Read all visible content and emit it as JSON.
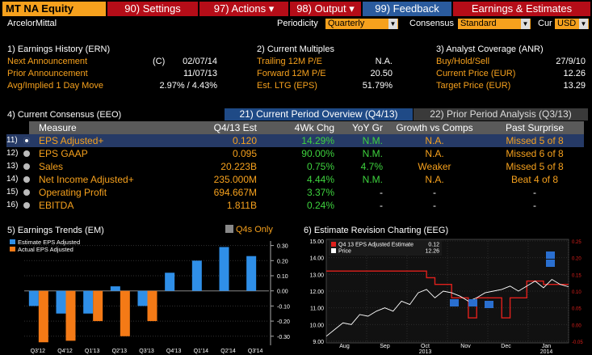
{
  "toolbar": {
    "security": "MT NA Equity",
    "settings": {
      "num": "90)",
      "label": "Settings"
    },
    "actions": {
      "num": "97)",
      "label": "Actions ▾"
    },
    "output": {
      "num": "98)",
      "label": "Output ▾"
    },
    "feedback": {
      "num": "99)",
      "label": "Feedback"
    },
    "title": "Earnings & Estimates"
  },
  "row2": {
    "company": "ArcelorMittal",
    "periodicity_label": "Periodicity",
    "periodicity_value": "Quarterly",
    "consensus_label": "Consensus",
    "consensus_value": "Standard",
    "cur_label": "Cur",
    "cur_value": "USD"
  },
  "earnings_history": {
    "title": "1) Earnings History (ERN)",
    "rows": [
      {
        "label": "Next Announcement",
        "flag": "(C)",
        "value": "02/07/14"
      },
      {
        "label": "Prior Announcement",
        "flag": "",
        "value": "11/07/13"
      },
      {
        "label": "Avg/Implied 1 Day Move",
        "flag": "",
        "value": "2.97% / 4.43%"
      }
    ]
  },
  "current_multiples": {
    "title": "2) Current Multiples",
    "rows": [
      {
        "label": "Trailing 12M P/E",
        "value": "N.A."
      },
      {
        "label": "Forward 12M P/E",
        "value": "20.50"
      },
      {
        "label": "Est. LTG (EPS)",
        "value": "51.79%"
      }
    ]
  },
  "analyst_coverage": {
    "title": "3) Analyst Coverage (ANR)",
    "rows": [
      {
        "label": "Buy/Hold/Sell",
        "value": "27/9/10"
      },
      {
        "label": "Current Price (EUR)",
        "value": "12.26"
      },
      {
        "label": "Target Price (EUR)",
        "value": "13.29"
      }
    ]
  },
  "consensus": {
    "title": "4) Current Consensus (EEO)",
    "tab_current": "21) Current Period Overview (Q4/13)",
    "tab_prior": "22) Prior Period Analysis (Q3/13)",
    "headers": [
      "Measure",
      "Q4/13 Est",
      "4Wk Chg",
      "YoY Gr",
      "Growth vs Comps",
      "Past Surprise"
    ],
    "rows": [
      {
        "num": "11)",
        "measure": "EPS Adjusted+",
        "est": "0.120",
        "chg": "14.29%",
        "yoy": "N.M.",
        "comps": "N.A.",
        "surprise": "Missed 5 of 8"
      },
      {
        "num": "12)",
        "measure": "EPS GAAP",
        "est": "0.095",
        "chg": "90.00%",
        "yoy": "N.M.",
        "comps": "N.A.",
        "surprise": "Missed 6 of 8"
      },
      {
        "num": "13)",
        "measure": "Sales",
        "est": "20.223B",
        "chg": "0.75%",
        "yoy": "4.7%",
        "comps": "Weaker",
        "surprise": "Missed 5 of 8"
      },
      {
        "num": "14)",
        "measure": "Net Income Adjusted+",
        "est": "235.000M",
        "chg": "4.44%",
        "yoy": "N.M.",
        "comps": "N.A.",
        "surprise": "Beat 4 of 8"
      },
      {
        "num": "15)",
        "measure": "Operating Profit",
        "est": "694.667M",
        "chg": "3.37%",
        "yoy": "-",
        "comps": "-",
        "surprise": "-"
      },
      {
        "num": "16)",
        "measure": "EBITDA",
        "est": "1.811B",
        "chg": "0.24%",
        "yoy": "-",
        "comps": "-",
        "surprise": "-"
      }
    ]
  },
  "earnings_trends": {
    "title": "5) Earnings Trends (EM)",
    "q4s_label": "Q4s Only"
  },
  "revision_chart": {
    "title": "6) Estimate Revision Charting (EEG)"
  },
  "chart_data": [
    {
      "type": "bar",
      "categories": [
        "Q3'12",
        "Q4'12",
        "Q1'13",
        "Q2'13",
        "Q3'13",
        "Q4'13",
        "Q1'14",
        "Q2'14",
        "Q3'14"
      ],
      "series": [
        {
          "name": "Estimate EPS Adjusted",
          "color": "#2f8fe8",
          "values": [
            -0.1,
            -0.15,
            -0.15,
            0.03,
            -0.1,
            0.12,
            0.2,
            0.29,
            0.23
          ]
        },
        {
          "name": "Actual EPS Adjusted",
          "color": "#f47a16",
          "values": [
            -0.34,
            -0.33,
            -0.2,
            -0.3,
            -0.2,
            null,
            null,
            null,
            null
          ]
        }
      ],
      "y_ticks": [
        "0.30",
        "0.20",
        "0.10",
        "0.00",
        "-0.10",
        "-0.20",
        "-0.30"
      ],
      "ylim": [
        -0.36,
        0.33
      ]
    },
    {
      "type": "line",
      "x_ticks": [
        "Aug",
        "Sep",
        "Oct",
        "Nov",
        "Dec",
        "Jan"
      ],
      "x_year_labels": [
        "2013",
        "2014"
      ],
      "left_ticks": [
        "15.00",
        "14.00",
        "13.00",
        "12.00",
        "11.00",
        "10.00",
        "9.00"
      ],
      "right_ticks": [
        "0.25",
        "0.20",
        "0.15",
        "0.10",
        "0.05",
        "0.00",
        "-0.05"
      ],
      "series": [
        {
          "name": "Q4 13 EPS Adjusted Estimate",
          "value": "0.12",
          "color": "#e0201c",
          "values": [
            0.16,
            0.16,
            0.16,
            0.16,
            0.16,
            0.16,
            0.16,
            0.16,
            0.16,
            0.16,
            0.16,
            0.16,
            0.14,
            0.12,
            0.12,
            0.08,
            0.08,
            0.02,
            0.08,
            0.08,
            0.08,
            0.02,
            0.08,
            0.08,
            0.13,
            0.13,
            0.12,
            0.12,
            0.12,
            0.12
          ]
        },
        {
          "name": "Price",
          "value": "12.26",
          "color": "#ffffff",
          "values": [
            9.3,
            9.7,
            10.1,
            10.0,
            10.6,
            10.5,
            10.8,
            11.0,
            10.8,
            11.4,
            11.2,
            11.9,
            12.1,
            11.6,
            12.0,
            11.9,
            11.7,
            11.4,
            11.6,
            11.9,
            12.0,
            12.1,
            12.3,
            12.0,
            12.3,
            12.6,
            12.2,
            12.7,
            12.4,
            12.26
          ]
        }
      ],
      "left_ylim": [
        9.0,
        15.0
      ],
      "right_ylim": [
        -0.05,
        0.25
      ]
    }
  ]
}
